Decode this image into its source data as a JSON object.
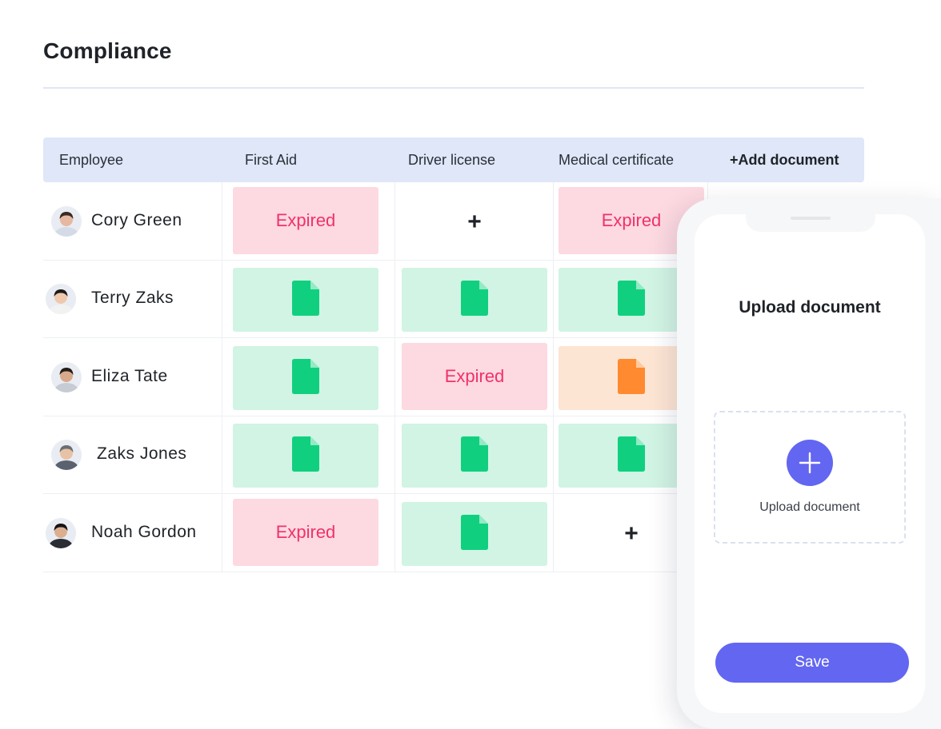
{
  "page": {
    "title": "Compliance"
  },
  "table": {
    "headers": {
      "employee": "Employee",
      "first_aid": "First Aid",
      "driver_license": "Driver license",
      "medical_certificate": "Medical certificate",
      "add_document": "+Add document"
    },
    "expired_label": "Expired",
    "add_label": "+",
    "rows": [
      {
        "name": "Cory Green",
        "first_aid": "expired",
        "driver_license": "empty",
        "medical_certificate": "expired"
      },
      {
        "name": "Terry Zaks",
        "first_aid": "valid",
        "driver_license": "valid",
        "medical_certificate": "valid"
      },
      {
        "name": "Eliza Tate",
        "first_aid": "valid",
        "driver_license": "expired",
        "medical_certificate": "expiring"
      },
      {
        "name": "Zaks Jones",
        "first_aid": "valid",
        "driver_license": "valid",
        "medical_certificate": "valid"
      },
      {
        "name": "Noah Gordon",
        "first_aid": "expired",
        "driver_license": "valid",
        "medical_certificate": "empty"
      }
    ]
  },
  "upload_modal": {
    "title": "Upload document",
    "dropzone_label": "Upload document",
    "save_label": "Save"
  },
  "colors": {
    "accent": "#6366f1",
    "valid": "#10d07f",
    "valid_bg": "#d1f4e4",
    "expired": "#f0326a",
    "expired_bg": "#fdd9e1",
    "expiring": "#ff8a30",
    "expiring_bg": "#fde5d3",
    "header_bg": "#dfe7f8"
  },
  "icons": {
    "document": "document-icon",
    "add": "plus-icon",
    "avatar": "avatar-photo"
  }
}
